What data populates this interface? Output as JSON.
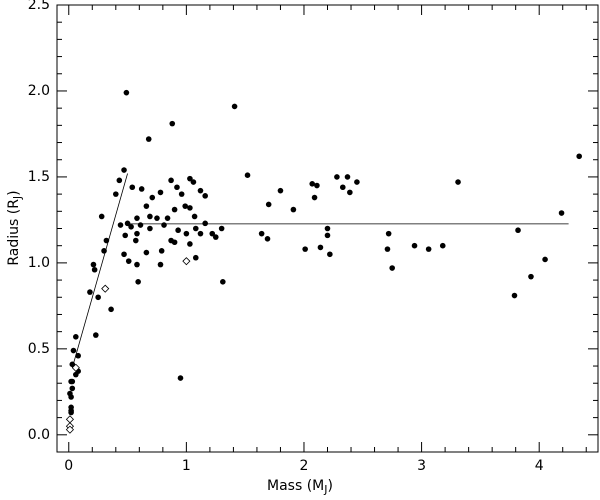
{
  "chart_data": {
    "type": "scatter",
    "xlabel": [
      "Mass (M",
      "J",
      ")"
    ],
    "ylabel": [
      "Radius (R",
      "J",
      ")"
    ],
    "xlim": [
      -0.1,
      4.5
    ],
    "ylim": [
      -0.1,
      2.5
    ],
    "xticks": [
      0,
      1,
      2,
      3,
      4
    ],
    "xminor": [
      0.2,
      0.4,
      0.6,
      0.8,
      1.2,
      1.4,
      1.6,
      1.8,
      2.2,
      2.4,
      2.6,
      2.8,
      3.2,
      3.4,
      3.6,
      3.8,
      4.2,
      4.4
    ],
    "yticks": [
      {
        "value": 0,
        "label": "0.0"
      },
      0.5,
      {
        "value": 1,
        "label": "1.0"
      },
      1.5,
      {
        "value": 2,
        "label": "2.0"
      },
      2.5
    ],
    "yminor": [
      0.1,
      0.2,
      0.3,
      0.4,
      0.6,
      0.7,
      0.8,
      0.9,
      1.1,
      1.2,
      1.3,
      1.4,
      1.6,
      1.7,
      1.8,
      1.9,
      2.1,
      2.2,
      2.3,
      2.4
    ],
    "series": [
      {
        "marker": "filled-circle",
        "color": "#000000",
        "x": [
          0.49,
          1.41,
          0.88,
          0.68,
          4.34,
          0.47,
          2.28,
          1.52,
          0.43,
          2.45,
          3.31,
          2.37,
          0.87,
          1.03,
          2.33,
          2.07,
          2.11,
          0.92,
          1.06,
          1.8,
          0.54,
          0.62,
          0.78,
          1.12,
          2.39,
          0.96,
          0.4,
          0.71,
          1.16,
          1.7,
          0.99,
          1.03,
          0.9,
          0.66,
          2.09,
          1.91,
          0.28,
          4.19,
          0.58,
          0.69,
          0.75,
          0.84,
          1.07,
          0.5,
          0.53,
          0.44,
          0.61,
          0.81,
          1.16,
          1.08,
          1.3,
          0.48,
          0.58,
          0.69,
          0.93,
          1.0,
          1.12,
          1.22,
          2.2,
          2.2,
          1.64,
          1.69,
          2.72,
          2.94,
          3.82,
          0.57,
          0.32,
          0.87,
          0.9,
          1.03,
          1.25,
          0.3,
          2.01,
          2.14,
          3.18,
          2.71,
          3.06,
          0.47,
          0.66,
          0.79,
          0.51,
          1.08,
          2.22,
          4.05,
          0.21,
          0.58,
          0.78,
          2.75,
          0.22,
          0.59,
          3.93,
          1.31,
          0.18,
          3.79,
          0.25,
          0.36,
          0.23,
          0.06,
          0.04,
          0.08,
          0.03,
          0.08,
          0.06,
          0.02,
          0.03,
          0.01,
          0.02,
          0.02,
          0.02,
          0.02,
          0.95,
          0.03
        ],
        "values": [
          1.99,
          1.91,
          1.81,
          1.72,
          1.62,
          1.54,
          1.5,
          1.51,
          1.48,
          1.47,
          1.47,
          1.5,
          1.48,
          1.49,
          1.44,
          1.46,
          1.45,
          1.44,
          1.47,
          1.42,
          1.44,
          1.43,
          1.41,
          1.42,
          1.41,
          1.4,
          1.4,
          1.38,
          1.39,
          1.34,
          1.33,
          1.32,
          1.31,
          1.33,
          1.38,
          1.31,
          1.27,
          1.29,
          1.26,
          1.27,
          1.26,
          1.26,
          1.27,
          1.23,
          1.21,
          1.22,
          1.22,
          1.22,
          1.23,
          1.2,
          1.2,
          1.16,
          1.17,
          1.2,
          1.19,
          1.17,
          1.17,
          1.17,
          1.2,
          1.16,
          1.17,
          1.14,
          1.17,
          1.1,
          1.19,
          1.13,
          1.13,
          1.13,
          1.12,
          1.11,
          1.15,
          1.07,
          1.08,
          1.09,
          1.1,
          1.08,
          1.08,
          1.05,
          1.06,
          1.07,
          1.01,
          1.03,
          1.05,
          1.02,
          0.99,
          0.99,
          0.99,
          0.97,
          0.96,
          0.89,
          0.92,
          0.89,
          0.83,
          0.81,
          0.8,
          0.73,
          0.58,
          0.57,
          0.49,
          0.46,
          0.41,
          0.37,
          0.35,
          0.31,
          0.27,
          0.24,
          0.22,
          0.16,
          0.14,
          0.13,
          0.33,
          0.31
        ]
      },
      {
        "marker": "open-diamond",
        "color": "#000000",
        "x": [
          1.0,
          0.31,
          0.06,
          0.01,
          0.01,
          0.01
        ],
        "values": [
          1.01,
          0.85,
          0.39,
          0.09,
          0.05,
          0.03
        ]
      }
    ],
    "lines": [
      {
        "color": "#000000",
        "x": [
          0.03,
          0.5
        ],
        "y": [
          0.39,
          1.52
        ]
      },
      {
        "color": "#000000",
        "x": [
          0.5,
          4.25
        ],
        "y": [
          1.227,
          1.227
        ]
      }
    ]
  }
}
